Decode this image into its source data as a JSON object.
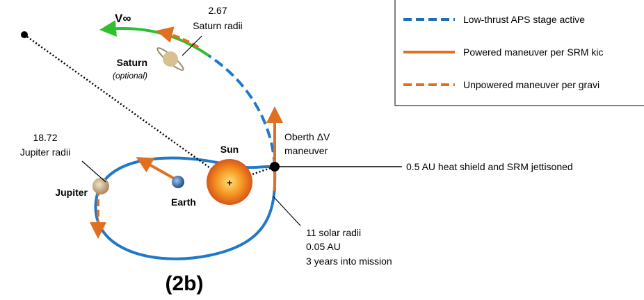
{
  "labels": {
    "saturn_radii_value": "2.67",
    "saturn_radii": "Saturn radii",
    "v_infinity": "V∞",
    "saturn": "Saturn",
    "saturn_note": "(optional)",
    "jupiter_radii_value": "18.72",
    "jupiter_radii": "Jupiter radii",
    "jupiter": "Jupiter",
    "earth": "Earth",
    "sun": "Sun",
    "oberth_1": "Oberth ΔV",
    "oberth_2": "maneuver",
    "jettison": "0.5 AU heat shield and SRM jettisoned",
    "perihelion_1": "11 solar radii",
    "perihelion_2": "0.05 AU",
    "perihelion_3": "3 years into mission",
    "figure_id": "(2b)"
  },
  "legend": [
    "Low-thrust APS stage active",
    "Powered maneuver per SRM kic",
    "Unpowered maneuver per gravi"
  ]
}
